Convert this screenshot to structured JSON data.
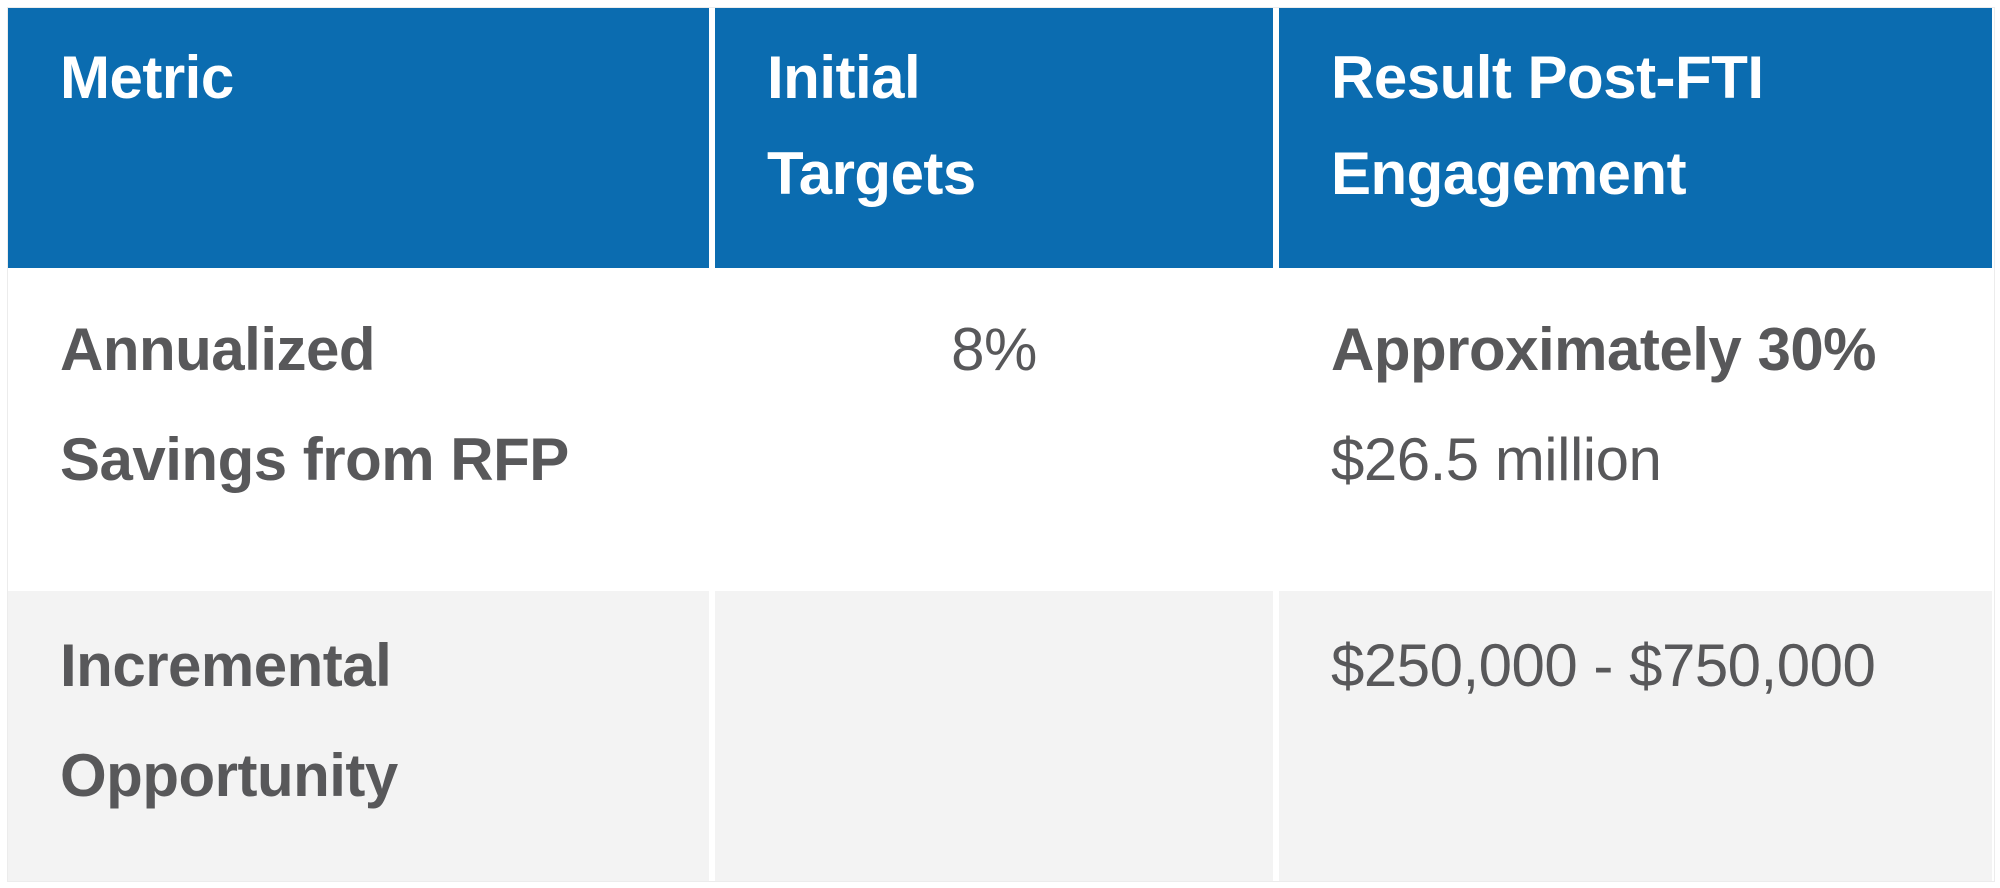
{
  "table": {
    "columns": [
      {
        "label": "Metric",
        "lines": [
          "Metric"
        ]
      },
      {
        "label": "Initial Targets",
        "lines": [
          "Initial",
          "Targets"
        ]
      },
      {
        "label": "Result Post-FTI Engagement",
        "lines": [
          "Result Post-FTI",
          "Engagement"
        ]
      }
    ],
    "rows": [
      {
        "metric": "Annualized Savings from RFP",
        "metric_lines": [
          "Annualized",
          "Savings from RFP"
        ],
        "initial_targets": "8%",
        "result_lines": [
          {
            "text": "Approximately 30%",
            "bold": true
          },
          {
            "text": "$26.5 million",
            "bold": false
          }
        ]
      },
      {
        "metric": "Incremental Opportunity",
        "metric_lines": [
          "Incremental",
          "Opportunity"
        ],
        "initial_targets": "",
        "result_lines": [
          {
            "text": "$250,000 - $750,000",
            "bold": false
          }
        ]
      }
    ]
  },
  "colors": {
    "header_bg": "#0b6cb0",
    "header_text": "#ffffff",
    "body_text": "#58585a",
    "row_bg": "#ffffff",
    "alt_row_bg": "#f3f3f3"
  }
}
